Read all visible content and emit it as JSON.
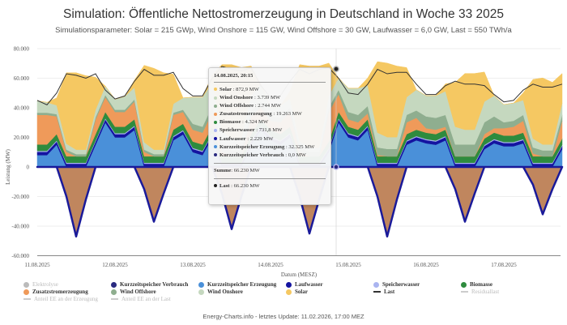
{
  "title": "Simulation: Öffentliche Nettostromerzeugung in Deutschland in Woche 33 2025",
  "subtitle": "Simulationsparameter: Solar = 215 GWp, Wind Onshore = 115 GW, Wind Offshore = 30 GW, Laufwasser = 6,0 GW, Last = 550 TWh/a",
  "footer": "Energy-Charts.info - letztes Update: 11.02.2026, 17:00 MEZ",
  "tooltip": {
    "header": "14.08.2025, 20:15",
    "rows": [
      {
        "name": "Solar",
        "value": "872,9 MW",
        "color": "#f5c862"
      },
      {
        "name": "Wind Onshore",
        "value": "3.739 MW",
        "color": "#c5d8bf"
      },
      {
        "name": "Wind Offshore",
        "value": "2.744 MW",
        "color": "#8fae8f"
      },
      {
        "name": "Zusatzstromerzeugung",
        "value": "19.263 MW",
        "color": "#ef9a5a"
      },
      {
        "name": "Biomasse",
        "value": "4.324 MW",
        "color": "#2e8b3e"
      },
      {
        "name": "Speicherwasser",
        "value": "731,8 MW",
        "color": "#aab4f0"
      },
      {
        "name": "Laufwasser",
        "value": "2.229 MW",
        "color": "#1414a0"
      },
      {
        "name": "Kurzzeitspeicher Erzeugung",
        "value": "32.325 MW",
        "color": "#4a90d9"
      },
      {
        "name": "Kurzzeitspeicher Verbrauch",
        "value": "0,0 MW",
        "color": "#2a2a80"
      }
    ],
    "sum_label": "Summe",
    "sum_value": "66.230 MW",
    "last_label": "Last",
    "last_value": "66.230 MW"
  },
  "legend": [
    {
      "name": "Elektrolyse",
      "color": "#bbbbbb",
      "type": "dot",
      "enabled": false
    },
    {
      "name": "Kurzzeitspeicher Verbrauch",
      "color": "#2a2a80",
      "type": "dot",
      "enabled": true
    },
    {
      "name": "Kurzzeitspeicher Erzeugung",
      "color": "#4a90d9",
      "type": "dot",
      "enabled": true
    },
    {
      "name": "Laufwasser",
      "color": "#1414a0",
      "type": "dot",
      "enabled": true
    },
    {
      "name": "Speicherwasser",
      "color": "#aab4f0",
      "type": "dot",
      "enabled": true
    },
    {
      "name": "Biomasse",
      "color": "#2e8b3e",
      "type": "dot",
      "enabled": true
    },
    {
      "name": "Zusatzstromerzeugung",
      "color": "#ef9a5a",
      "type": "dot",
      "enabled": true
    },
    {
      "name": "Wind Offshore",
      "color": "#8fae8f",
      "type": "dot",
      "enabled": true
    },
    {
      "name": "Wind Onshore",
      "color": "#c5d8bf",
      "type": "dot",
      "enabled": true
    },
    {
      "name": "Solar",
      "color": "#f5c862",
      "type": "dot",
      "enabled": true
    },
    {
      "name": "Last",
      "color": "#333333",
      "type": "line",
      "enabled": true
    },
    {
      "name": "Residuallast",
      "color": "#cccccc",
      "type": "line",
      "enabled": false
    },
    {
      "name": "Anteil EE an der Erzeugung",
      "color": "#cccccc",
      "type": "line",
      "enabled": false
    },
    {
      "name": "Anteil EE an der Last",
      "color": "#cccccc",
      "type": "line",
      "enabled": false
    }
  ],
  "chart_data": {
    "type": "area",
    "stacked": true,
    "xlabel": "Datum (MESZ)",
    "ylabel": "Leistung (MW)",
    "ylim": [
      -60000,
      80000
    ],
    "yticks": [
      80000,
      60000,
      40000,
      20000,
      0,
      -20000,
      -40000,
      -60000
    ],
    "ytick_labels": [
      "80.000",
      "60.000",
      "40.000",
      "20.000",
      "0",
      "-20.000",
      "-40.000",
      "-60.000"
    ],
    "xticks": [
      "11.08.2025",
      "12.08.2025",
      "13.08.2025",
      "14.08.2025",
      "15.08.2025",
      "16.08.2025",
      "17.08.2025"
    ],
    "x_start": "11.08.2025 00:00",
    "x_step_hours": 3,
    "grid": true,
    "legend_position": "bottom",
    "series": [
      {
        "name": "Kurzzeitspeicher Erzeugung",
        "color": "#4a90d9",
        "values": [
          8000,
          8000,
          15000,
          0,
          0,
          0,
          15000,
          30000,
          20000,
          20000,
          25000,
          0,
          0,
          0,
          18000,
          22000,
          10000,
          8000,
          20000,
          0,
          0,
          0,
          15000,
          25000,
          18000,
          15000,
          20000,
          0,
          0,
          0,
          10000,
          30000,
          20000,
          18000,
          25000,
          0,
          0,
          0,
          15000,
          18000,
          16000,
          15000,
          18000,
          0,
          0,
          0,
          12000,
          16000,
          14000,
          14000,
          16000,
          0,
          0,
          0,
          12000
        ]
      },
      {
        "name": "Laufwasser",
        "color": "#1414a0",
        "values": [
          2200,
          2200,
          2200,
          2200,
          2200,
          2200,
          2200,
          2200,
          2200,
          2200,
          2200,
          2200,
          2200,
          2200,
          2200,
          2200,
          2200,
          2200,
          2200,
          2200,
          2200,
          2200,
          2200,
          2200,
          2200,
          2200,
          2200,
          2200,
          2200,
          2200,
          2200,
          2200,
          2200,
          2200,
          2200,
          2200,
          2200,
          2200,
          2200,
          2200,
          2200,
          2200,
          2200,
          2200,
          2200,
          2200,
          2200,
          2200,
          2200,
          2200,
          2200,
          2200,
          2200,
          2200,
          2200
        ]
      },
      {
        "name": "Speicherwasser",
        "color": "#aab4f0",
        "values": [
          700,
          700,
          700,
          700,
          700,
          700,
          700,
          700,
          700,
          700,
          700,
          700,
          700,
          700,
          700,
          700,
          700,
          700,
          700,
          700,
          700,
          700,
          700,
          700,
          700,
          700,
          700,
          700,
          700,
          700,
          700,
          700,
          700,
          700,
          700,
          700,
          700,
          700,
          700,
          700,
          700,
          700,
          700,
          700,
          700,
          700,
          700,
          700,
          700,
          700,
          700,
          700,
          700,
          700,
          700
        ]
      },
      {
        "name": "Biomasse",
        "color": "#2e8b3e",
        "values": [
          4300,
          4300,
          4300,
          4300,
          4300,
          4300,
          4300,
          4300,
          4300,
          4300,
          4300,
          4300,
          4300,
          4300,
          4300,
          4300,
          4300,
          4300,
          4300,
          4300,
          4300,
          4300,
          4300,
          4300,
          4300,
          4300,
          4300,
          4300,
          4300,
          4300,
          4300,
          4300,
          4300,
          4300,
          4300,
          4300,
          4300,
          4300,
          4300,
          4300,
          4300,
          4300,
          4300,
          4300,
          4300,
          4300,
          4300,
          4300,
          4300,
          4300,
          4300,
          4300,
          4300,
          4300,
          4300
        ]
      },
      {
        "name": "Zusatzstromerzeugung",
        "color": "#ef9a5a",
        "values": [
          20000,
          20000,
          12000,
          3000,
          0,
          0,
          10000,
          10000,
          10000,
          10000,
          12000,
          3000,
          0,
          0,
          10000,
          8000,
          8000,
          8000,
          10000,
          3000,
          0,
          0,
          12000,
          8000,
          6000,
          8000,
          10000,
          3000,
          0,
          0,
          20000,
          12000,
          5000,
          5000,
          4000,
          1000,
          0,
          0,
          8000,
          8000,
          3000,
          3000,
          2000,
          0,
          0,
          0,
          3000,
          3000,
          5000,
          6000,
          8000,
          2000,
          0,
          0,
          12000
        ]
      },
      {
        "name": "Wind Offshore",
        "color": "#8fae8f",
        "values": [
          1500,
          1500,
          1500,
          1500,
          1500,
          1500,
          1500,
          1500,
          1500,
          1500,
          1500,
          1500,
          1500,
          1500,
          1500,
          1500,
          4000,
          4000,
          4000,
          4000,
          4000,
          4000,
          4000,
          4000,
          3000,
          3000,
          3000,
          3000,
          3000,
          3000,
          3000,
          3000,
          5000,
          5000,
          5000,
          5000,
          5000,
          5000,
          5000,
          5000,
          8000,
          8000,
          8000,
          8000,
          8000,
          8000,
          8000,
          8000,
          4000,
          4000,
          4000,
          4000,
          4000,
          4000,
          4000
        ]
      },
      {
        "name": "Wind Onshore",
        "color": "#c5d8bf",
        "values": [
          8000,
          7000,
          6000,
          4000,
          3000,
          3000,
          5000,
          6000,
          7000,
          9000,
          8000,
          5000,
          3000,
          3000,
          6000,
          8000,
          18000,
          20000,
          16000,
          10000,
          8000,
          8000,
          10000,
          12000,
          6000,
          8000,
          6000,
          4000,
          3000,
          3000,
          8000,
          8000,
          16000,
          18000,
          14000,
          10000,
          8000,
          8000,
          12000,
          14000,
          14000,
          15000,
          16000,
          12000,
          10000,
          10000,
          14000,
          14000,
          12000,
          12000,
          10000,
          6000,
          4000,
          4000,
          8000
        ]
      },
      {
        "name": "Solar",
        "color": "#f5c862",
        "values": [
          0,
          0,
          5000,
          48000,
          52000,
          50000,
          22000,
          0,
          0,
          0,
          5000,
          52000,
          55000,
          52000,
          20000,
          0,
          0,
          0,
          5000,
          45000,
          50000,
          48000,
          20000,
          0,
          0,
          0,
          5000,
          52000,
          55000,
          55000,
          22000,
          0,
          0,
          0,
          5000,
          48000,
          50000,
          48000,
          20000,
          0,
          0,
          0,
          5000,
          30000,
          38000,
          38000,
          20000,
          0,
          0,
          0,
          5000,
          40000,
          45000,
          42000,
          20000
        ]
      },
      {
        "name": "Kurzzeitspeicher Verbrauch",
        "color": "#2a2a80",
        "values": [
          0,
          0,
          0,
          -20000,
          -47000,
          -22000,
          0,
          0,
          0,
          0,
          0,
          -15000,
          -37000,
          -18000,
          0,
          0,
          0,
          0,
          0,
          -18000,
          -42000,
          -20000,
          0,
          0,
          0,
          0,
          0,
          -20000,
          -45000,
          -22000,
          0,
          0,
          0,
          0,
          0,
          -20000,
          -47000,
          -22000,
          0,
          0,
          0,
          0,
          0,
          -15000,
          -37000,
          -18000,
          0,
          0,
          0,
          0,
          0,
          -12000,
          -32000,
          -15000,
          0
        ]
      },
      {
        "name": "Last",
        "color": "#333333",
        "type": "line",
        "values": [
          45000,
          42000,
          50000,
          63000,
          62000,
          60000,
          63000,
          52000,
          46000,
          48000,
          58000,
          66000,
          62000,
          62000,
          64000,
          53000,
          48000,
          48000,
          60000,
          68000,
          66000,
          65000,
          67000,
          55000,
          47000,
          48000,
          58000,
          66000,
          63000,
          66000,
          67000,
          60000,
          50000,
          49000,
          56000,
          66000,
          63000,
          64000,
          64000,
          56000,
          49000,
          49000,
          55000,
          58000,
          56000,
          56000,
          55000,
          49000,
          44000,
          45000,
          52000,
          56000,
          54000,
          54000,
          56000
        ]
      }
    ]
  }
}
